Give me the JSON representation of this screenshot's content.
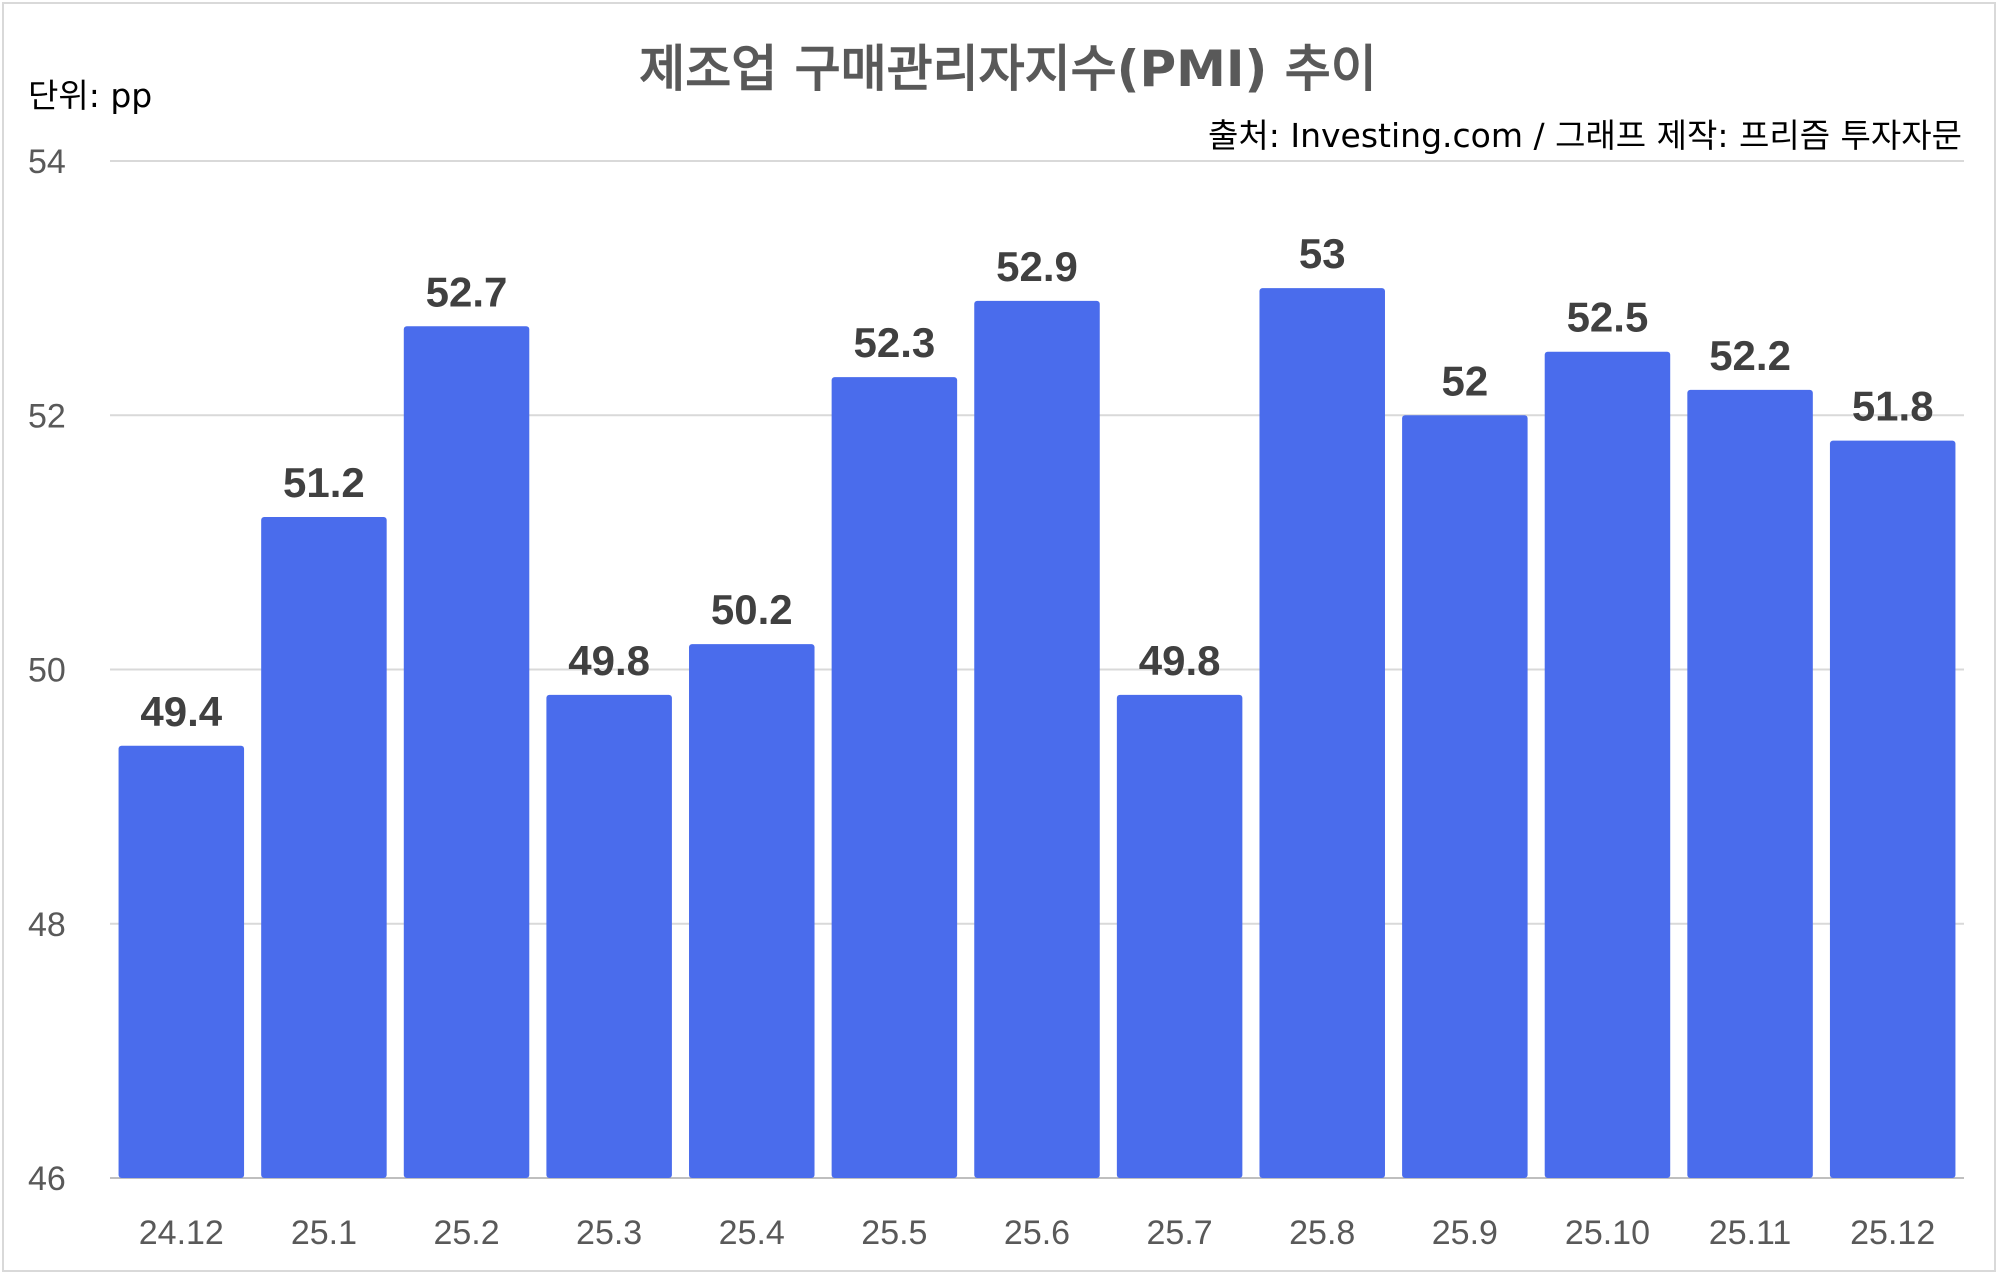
{
  "chart_data": {
    "type": "bar",
    "title": "제조업 구매관리자지수(PMI) 추이",
    "unit_label": "단위: pp",
    "source": "출처: Investing.com / 그래프 제작: 프리즘 투자자문",
    "categories": [
      "24.12",
      "25.1",
      "25.2",
      "25.3",
      "25.4",
      "25.5",
      "25.6",
      "25.7",
      "25.8",
      "25.9",
      "25.10",
      "25.11",
      "25.12"
    ],
    "values": [
      49.4,
      51.2,
      52.7,
      49.8,
      50.2,
      52.3,
      52.9,
      49.8,
      53,
      52,
      52.5,
      52.2,
      51.8
    ],
    "value_labels": [
      "49.4",
      "51.2",
      "52.7",
      "49.8",
      "50.2",
      "52.3",
      "52.9",
      "49.8",
      "53",
      "52",
      "52.5",
      "52.2",
      "51.8"
    ],
    "ylim": [
      46,
      54
    ],
    "yticks": [
      46,
      48,
      50,
      52,
      54
    ],
    "ytick_labels": [
      "46",
      "48",
      "50",
      "52",
      "54"
    ],
    "grid": true,
    "bar_color": "#4a6cec",
    "xlabel": "",
    "ylabel": ""
  }
}
